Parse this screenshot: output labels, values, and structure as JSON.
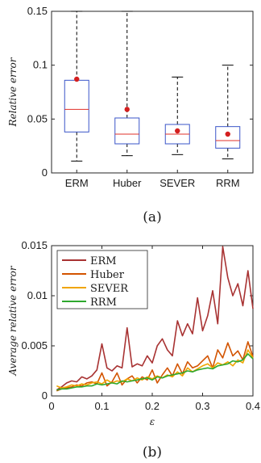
{
  "chart_data": [
    {
      "type": "box",
      "panel_label": "(a)",
      "ylabel": "Relative error",
      "ylim": [
        0,
        0.15
      ],
      "yticks": [
        0,
        0.05,
        0.1,
        0.15
      ],
      "ytick_labels": [
        "0",
        "0.05",
        "0.1",
        "0.15"
      ],
      "categories": [
        "ERM",
        "Huber",
        "SEVER",
        "RRM"
      ],
      "boxes": [
        {
          "whisker_low": 0.011,
          "q1": 0.038,
          "median": 0.059,
          "q3": 0.086,
          "whisker_high": 0.15,
          "mean": 0.087
        },
        {
          "whisker_low": 0.016,
          "q1": 0.027,
          "median": 0.036,
          "q3": 0.051,
          "whisker_high": 0.15,
          "mean": 0.059
        },
        {
          "whisker_low": 0.017,
          "q1": 0.027,
          "median": 0.036,
          "q3": 0.045,
          "whisker_high": 0.089,
          "mean": 0.039
        },
        {
          "whisker_low": 0.013,
          "q1": 0.023,
          "median": 0.03,
          "q3": 0.043,
          "whisker_high": 0.1,
          "mean": 0.036
        }
      ],
      "colors": {
        "box": "#3a55c8",
        "median": "#e0302a",
        "mean": "#d41f1f",
        "whisker": "#000000"
      }
    },
    {
      "type": "line",
      "panel_label": "(b)",
      "xlabel": "ε",
      "ylabel": "Average relative error",
      "xlim": [
        0,
        0.4
      ],
      "ylim": [
        0,
        0.015
      ],
      "xticks": [
        0,
        0.1,
        0.2,
        0.3,
        0.4
      ],
      "xtick_labels": [
        "0",
        "0.1",
        "0.2",
        "0.3",
        "0.4"
      ],
      "yticks": [
        0,
        0.005,
        0.01,
        0.015
      ],
      "ytick_labels": [
        "0",
        "0.005",
        "0.01",
        "0.015"
      ],
      "legend_position": "top-left",
      "x": [
        0.01,
        0.02,
        0.03,
        0.04,
        0.05,
        0.06,
        0.07,
        0.08,
        0.09,
        0.1,
        0.11,
        0.12,
        0.13,
        0.14,
        0.15,
        0.16,
        0.17,
        0.18,
        0.19,
        0.2,
        0.21,
        0.22,
        0.23,
        0.24,
        0.25,
        0.26,
        0.27,
        0.28,
        0.29,
        0.3,
        0.31,
        0.32,
        0.33,
        0.34,
        0.35,
        0.36,
        0.37,
        0.38,
        0.39,
        0.4
      ],
      "series": [
        {
          "name": "ERM",
          "color": "#a83232",
          "values": [
            0.0006,
            0.0009,
            0.0013,
            0.0015,
            0.0014,
            0.0019,
            0.0017,
            0.002,
            0.0026,
            0.0052,
            0.0028,
            0.0025,
            0.003,
            0.0028,
            0.0068,
            0.0029,
            0.0032,
            0.003,
            0.004,
            0.0033,
            0.005,
            0.0057,
            0.0046,
            0.004,
            0.0075,
            0.006,
            0.0072,
            0.0062,
            0.0098,
            0.0065,
            0.008,
            0.0105,
            0.0072,
            0.0149,
            0.0118,
            0.01,
            0.0112,
            0.009,
            0.0125,
            0.0087
          ]
        },
        {
          "name": "Huber",
          "color": "#d35400",
          "values": [
            0.0005,
            0.0007,
            0.0008,
            0.0009,
            0.0011,
            0.001,
            0.0013,
            0.0014,
            0.0012,
            0.0023,
            0.001,
            0.0014,
            0.0023,
            0.0011,
            0.0017,
            0.002,
            0.0013,
            0.0019,
            0.0016,
            0.0026,
            0.0013,
            0.0021,
            0.0028,
            0.002,
            0.0032,
            0.0022,
            0.0034,
            0.0028,
            0.003,
            0.0035,
            0.004,
            0.0028,
            0.0046,
            0.0038,
            0.0053,
            0.004,
            0.0045,
            0.0036,
            0.0054,
            0.0039
          ]
        },
        {
          "name": "SEVER",
          "color": "#f0a500",
          "values": [
            0.001,
            0.0008,
            0.0009,
            0.0011,
            0.001,
            0.0012,
            0.0011,
            0.0013,
            0.0014,
            0.0012,
            0.0016,
            0.0013,
            0.0015,
            0.0014,
            0.0017,
            0.0015,
            0.0018,
            0.0016,
            0.0019,
            0.0017,
            0.002,
            0.0018,
            0.0021,
            0.0019,
            0.0024,
            0.002,
            0.0028,
            0.0024,
            0.0027,
            0.003,
            0.0032,
            0.0028,
            0.0033,
            0.0031,
            0.0034,
            0.003,
            0.0036,
            0.0033,
            0.0046,
            0.0038
          ]
        },
        {
          "name": "RRM",
          "color": "#2ea82e",
          "values": [
            0.0006,
            0.0007,
            0.0007,
            0.0008,
            0.0009,
            0.0009,
            0.001,
            0.001,
            0.0012,
            0.0011,
            0.0012,
            0.0013,
            0.0012,
            0.0015,
            0.0014,
            0.0015,
            0.0016,
            0.0017,
            0.0018,
            0.0016,
            0.0019,
            0.0018,
            0.002,
            0.0021,
            0.0022,
            0.0023,
            0.0025,
            0.0024,
            0.0026,
            0.0027,
            0.0028,
            0.0027,
            0.003,
            0.0031,
            0.0032,
            0.0035,
            0.0034,
            0.0036,
            0.0042,
            0.0037
          ]
        }
      ]
    }
  ]
}
